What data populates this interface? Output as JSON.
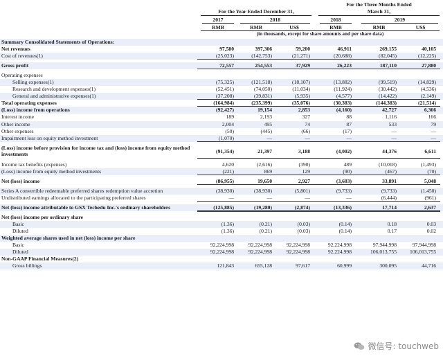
{
  "header": {
    "year_group": "For the Year Ended December 31,",
    "quarter_group_line1": "For the Three Months Ended",
    "quarter_group_line2": "March 31,",
    "years": [
      "2017",
      "2018",
      "2018",
      "2019"
    ],
    "currencies": [
      "RMB",
      "RMB",
      "US$",
      "RMB",
      "RMB",
      "US$"
    ],
    "note": "(in thousands, except for share amounts and per share data)"
  },
  "rows": [
    {
      "label": "Summary Consolidated Statements of Operations:",
      "style": "bold shaded",
      "values": []
    },
    {
      "label": "Net revenues",
      "style": "bold",
      "values": [
        "97,580",
        "397,306",
        "59,200",
        "46,911",
        "269,155",
        "40,105"
      ]
    },
    {
      "label": "Cost of revenues(1)",
      "style": "shaded botline",
      "values": [
        "(25,023)",
        "(142,753)",
        "(21,271)",
        "(20,688)",
        "(82,045)",
        "(12,225)"
      ]
    },
    {
      "label": "",
      "style": "gap",
      "values": []
    },
    {
      "label": "Gross profit",
      "style": "bold shaded botline",
      "values": [
        "72,557",
        "254,553",
        "37,929",
        "26,223",
        "187,110",
        "27,880"
      ]
    },
    {
      "label": "",
      "style": "gap",
      "values": []
    },
    {
      "label": "Operating expenses",
      "style": "",
      "values": []
    },
    {
      "label": "Selling expenses(1)",
      "style": "i1 shaded",
      "values": [
        "(75,325)",
        "(121,518)",
        "(18,107)",
        "(13,882)",
        "(99,519)",
        "(14,829)"
      ]
    },
    {
      "label": "Research and development expenses(1)",
      "style": "i1",
      "values": [
        "(52,451)",
        "(74,050)",
        "(11,034)",
        "(11,924)",
        "(30,442)",
        "(4,536)"
      ]
    },
    {
      "label": "General and administrative expenses(1)",
      "style": "i1 shaded botline",
      "values": [
        "(37,208)",
        "(39,831)",
        "(5,935)",
        "(4,577)",
        "(14,422)",
        "(2,149)"
      ]
    },
    {
      "label": "Total operating expenses",
      "style": "bold botline",
      "values": [
        "(164,984)",
        "(235,399)",
        "(35,076)",
        "(30,383)",
        "(144,383)",
        "(21,514)"
      ]
    },
    {
      "label": "(Loss) income from operations",
      "style": "bold shaded",
      "values": [
        "(92,427)",
        "19,154",
        "2,853",
        "(4,160)",
        "42,727",
        "6,366"
      ]
    },
    {
      "label": "Interest income",
      "style": "",
      "values": [
        "189",
        "2,193",
        "327",
        "88",
        "1,116",
        "166"
      ]
    },
    {
      "label": "Other income",
      "style": "shaded",
      "values": [
        "2,004",
        "495",
        "74",
        "87",
        "533",
        "79"
      ]
    },
    {
      "label": "Other expenses",
      "style": "",
      "values": [
        "(50)",
        "(445)",
        "(66)",
        "(17)",
        "—",
        "—"
      ]
    },
    {
      "label": "Impairment loss on equity method investment",
      "style": "shaded botline",
      "values": [
        "(1,070)",
        "—",
        "—",
        "—",
        "—",
        "—"
      ]
    },
    {
      "label": "",
      "style": "gap",
      "values": []
    },
    {
      "label": "(Loss) income before provision for income tax and (loss) income from equity method investments",
      "style": "bold tall botline",
      "values": [
        "(91,354)",
        "21,397",
        "3,188",
        "(4,002)",
        "44,376",
        "6,611"
      ]
    },
    {
      "label": "",
      "style": "gap",
      "values": []
    },
    {
      "label": "Income tax benefits (expenses)",
      "style": "",
      "values": [
        "4,620",
        "(2,616)",
        "(390)",
        "489",
        "(10,018)",
        "(1,493)"
      ]
    },
    {
      "label": "(Loss) income from equity method investments",
      "style": "shaded botline",
      "values": [
        "(221)",
        "869",
        "129",
        "(90)",
        "(467)",
        "(70)"
      ]
    },
    {
      "label": "",
      "style": "gap",
      "values": []
    },
    {
      "label": "Net (loss) income",
      "style": "bold botline",
      "values": [
        "(86,955)",
        "19,650",
        "2,927",
        "(3,603)",
        "33,891",
        "5,048"
      ]
    },
    {
      "label": "",
      "style": "gap",
      "values": []
    },
    {
      "label": "Series A convertible redeemable preferred shares redemption value accretion",
      "style": "shaded",
      "values": [
        "(38,930)",
        "(38,930)",
        "(5,801)",
        "(9,733)",
        "(9,733)",
        "(1,450)"
      ]
    },
    {
      "label": "Undistributed earnings allocated to the participating preferred shares",
      "style": "botline",
      "values": [
        "—",
        "—",
        "—",
        "—",
        "(6,444)",
        "(961)"
      ]
    },
    {
      "label": "",
      "style": "gap",
      "values": []
    },
    {
      "label": "Net (loss) income attributable to GSX Techedu Inc.'s ordinary shareholders",
      "style": "bold shaded dbl",
      "values": [
        "(125,885)",
        "(19,280)",
        "(2,874)",
        "(13,336)",
        "17,714",
        "2,637"
      ]
    },
    {
      "label": "",
      "style": "gap",
      "values": []
    },
    {
      "label": "Net (loss) income per ordinary share",
      "style": "bold",
      "values": []
    },
    {
      "label": "Basic",
      "style": "i1 shaded",
      "values": [
        "(1.36)",
        "(0.21)",
        "(0.03)",
        "(0.14)",
        "0.18",
        "0.03"
      ]
    },
    {
      "label": "Diluted",
      "style": "i1",
      "values": [
        "(1.36)",
        "(0.21)",
        "(0.03)",
        "(0.14)",
        "0.17",
        "0.02"
      ]
    },
    {
      "label": "Weighted average shares used in net (loss) income per share",
      "style": "bold shaded",
      "values": []
    },
    {
      "label": "Basic",
      "style": "i1",
      "values": [
        "92,224,998",
        "92,224,998",
        "92,224,998",
        "92,224,998",
        "97,944,998",
        "97,944,998"
      ]
    },
    {
      "label": "Diluted",
      "style": "i1 shaded",
      "values": [
        "92,224,998",
        "92,224,998",
        "92,224,998",
        "92,224,998",
        "106,013,755",
        "106,013,755"
      ]
    },
    {
      "label": "Non-GAAP Financial Measures(2)",
      "style": "bold",
      "values": []
    },
    {
      "label": "Gross billings",
      "style": "i1 shaded",
      "values": [
        "121,843",
        "655,128",
        "97,617",
        "60,999",
        "300,095",
        "44,716"
      ]
    }
  ],
  "watermark": {
    "text": "微信号: touchweb",
    "icon": "wechat-icon"
  }
}
